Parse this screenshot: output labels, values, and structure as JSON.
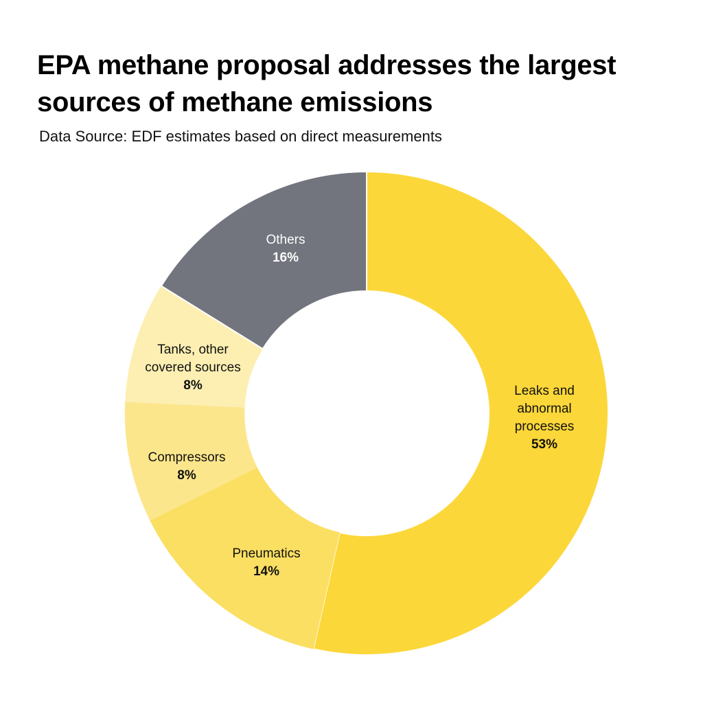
{
  "header": {
    "title_line1": "EPA methane proposal addresses the largest",
    "title_line2": "sources of methane emissions",
    "subtitle": "Data Source: EDF estimates based on direct measurements"
  },
  "chart": {
    "segments": [
      {
        "name": "leaks",
        "label_lines": [
          "Leaks and",
          "abnormal",
          "processes"
        ],
        "pct": "53%",
        "color": "#FCD739",
        "text_color": "#111111"
      },
      {
        "name": "pneumatics",
        "label_lines": [
          "Pneumatics"
        ],
        "pct": "14%",
        "color": "#FBDF62",
        "text_color": "#111111"
      },
      {
        "name": "compressors",
        "label_lines": [
          "Compressors"
        ],
        "pct": "8%",
        "color": "#FCE68C",
        "text_color": "#111111"
      },
      {
        "name": "tanks",
        "label_lines": [
          "Tanks, other",
          "covered sources"
        ],
        "pct": "8%",
        "color": "#FDEFB2",
        "text_color": "#111111"
      },
      {
        "name": "others",
        "label_lines": [
          "Others"
        ],
        "pct": "16%",
        "color": "#72747E",
        "text_color": "#FFFFFF"
      }
    ]
  },
  "chart_data": {
    "type": "pie",
    "subtype": "donut",
    "title": "EPA methane proposal addresses the largest sources of methane emissions",
    "subtitle": "Data Source: EDF estimates based on direct measurements",
    "categories": [
      "Leaks and abnormal processes",
      "Pneumatics",
      "Compressors",
      "Tanks, other covered sources",
      "Others"
    ],
    "values": [
      53,
      14,
      8,
      8,
      16
    ],
    "unit": "%",
    "colors": [
      "#FCD739",
      "#FBDF62",
      "#FCE68C",
      "#FDEFB2",
      "#72747E"
    ],
    "start_angle": "12 o'clock, clockwise",
    "legend": "none (direct labels on segments)"
  }
}
